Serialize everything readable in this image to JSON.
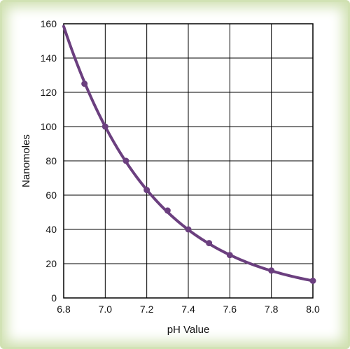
{
  "chart_data": {
    "type": "line",
    "title": "",
    "xlabel": "pH Value",
    "ylabel": "Nanomoles",
    "xlim": [
      6.8,
      8.0
    ],
    "ylim": [
      0,
      160
    ],
    "x_ticks": [
      "6.8",
      "7.0",
      "7.2",
      "7.4",
      "7.6",
      "7.8",
      "8.0"
    ],
    "y_ticks": [
      "0",
      "20",
      "40",
      "60",
      "80",
      "100",
      "120",
      "140",
      "160"
    ],
    "grid": true,
    "legend": "none",
    "series": [
      {
        "color": "#6b3f7f",
        "x": [
          6.9,
          7.0,
          7.1,
          7.2,
          7.3,
          7.4,
          7.5,
          7.6,
          7.8,
          8.0
        ],
        "y": [
          125,
          100,
          80,
          63,
          51,
          40,
          32,
          25,
          16,
          10
        ]
      }
    ]
  }
}
